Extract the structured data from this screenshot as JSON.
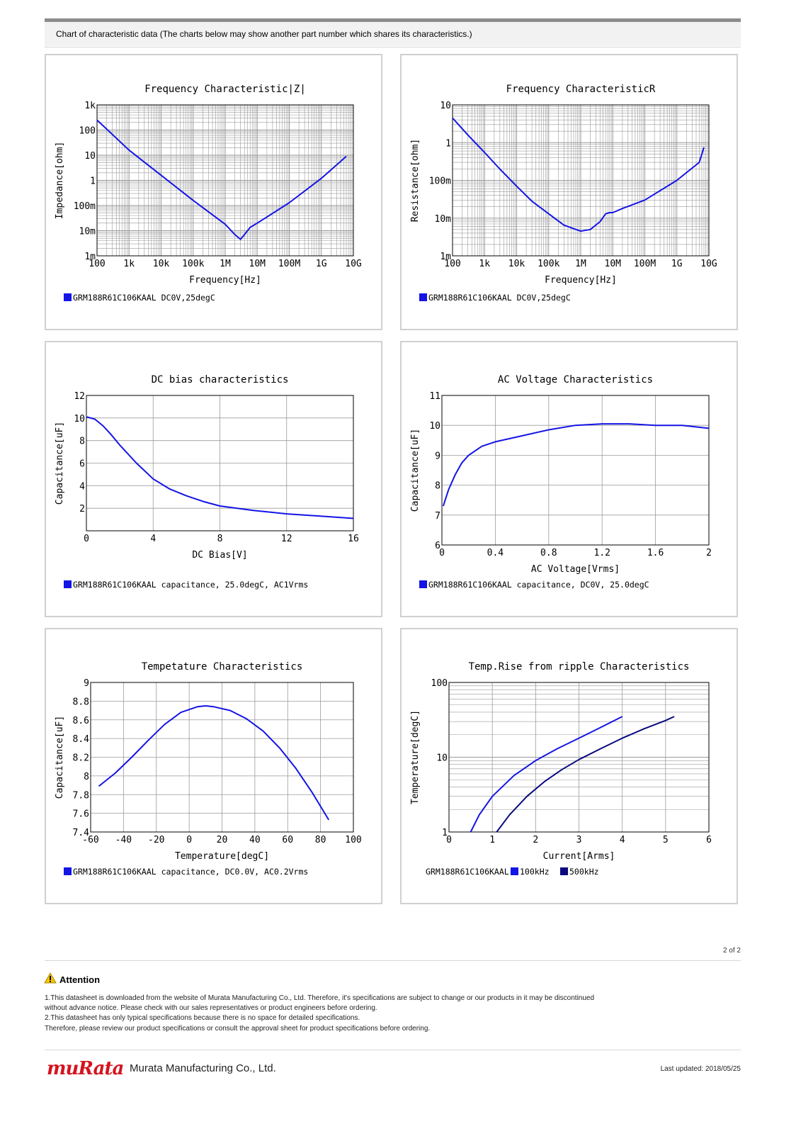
{
  "header": {
    "title": "Chart of characteristic data (The charts below may show another part number which shares its characteristics.)"
  },
  "chart_data": [
    {
      "type": "line",
      "title": "Frequency  Characteristic|Z|",
      "xlabel": "Frequency[Hz]",
      "ylabel": "Impedance[ohm]",
      "xscale": "log",
      "yscale": "log",
      "xlim": [
        100,
        10000000000
      ],
      "ylim": [
        0.001,
        1000
      ],
      "xticks": [
        "100",
        "1k",
        "10k",
        "100k",
        "1M",
        "10M",
        "100M",
        "1G",
        "10G"
      ],
      "yticks": [
        "1k",
        "100",
        "10",
        "1",
        "100m",
        "10m",
        "1m"
      ],
      "grid": true,
      "legend": "bottom-left",
      "legend_label": "GRM188R61C106KAAL DC0V,25degC",
      "series": [
        {
          "color": "#1414e6",
          "x": [
            100,
            1000,
            10000,
            100000,
            1000000,
            2000000,
            3000000,
            4000000,
            6000000,
            10000000,
            100000000,
            1000000000,
            6000000000
          ],
          "y": [
            250,
            16,
            1.6,
            0.16,
            0.018,
            0.007,
            0.0045,
            0.007,
            0.0135,
            0.02,
            0.13,
            1.2,
            9
          ]
        }
      ]
    },
    {
      "type": "line",
      "title": "Frequency  CharacteristicR",
      "xlabel": "Frequency[Hz]",
      "ylabel": "Resistance[ohm]",
      "xscale": "log",
      "yscale": "log",
      "xlim": [
        100,
        10000000000
      ],
      "ylim": [
        0.001,
        10
      ],
      "xticks": [
        "100",
        "1k",
        "10k",
        "100k",
        "1M",
        "10M",
        "100M",
        "1G",
        "10G"
      ],
      "yticks": [
        "10",
        "1",
        "100m",
        "10m",
        "1m"
      ],
      "grid": true,
      "legend": "bottom-left",
      "legend_label": "GRM188R61C106KAAL DC0V,25degC",
      "series": [
        {
          "color": "#1414e6",
          "x": [
            100,
            300,
            1000,
            3000,
            10000,
            30000,
            100000,
            300000,
            1000000,
            2000000,
            4000000,
            6000000,
            8000000,
            10000000,
            20000000,
            100000000,
            1000000000,
            5000000000,
            7000000000
          ],
          "y": [
            4.5,
            1.6,
            0.55,
            0.2,
            0.07,
            0.028,
            0.013,
            0.0065,
            0.0045,
            0.005,
            0.008,
            0.013,
            0.014,
            0.014,
            0.018,
            0.03,
            0.1,
            0.3,
            0.75
          ]
        }
      ]
    },
    {
      "type": "line",
      "title": "DC bias characteristics",
      "xlabel": "DC Bias[V]",
      "ylabel": "Capacitance[uF]",
      "xlim": [
        0,
        16
      ],
      "ylim": [
        0,
        12
      ],
      "xticks": [
        "0",
        "4",
        "8",
        "12",
        "16"
      ],
      "yticks": [
        "12",
        "10",
        "8",
        "6",
        "4",
        "2"
      ],
      "grid": true,
      "legend": "bottom-left",
      "legend_label": "GRM188R61C106KAAL capacitance, 25.0degC, AC1Vrms",
      "series": [
        {
          "color": "#1414e6",
          "x": [
            0,
            0.5,
            1,
            1.5,
            2,
            3,
            4,
            5,
            6,
            7,
            8,
            10,
            12,
            14,
            16
          ],
          "y": [
            10.1,
            9.9,
            9.3,
            8.5,
            7.6,
            6,
            4.6,
            3.7,
            3.1,
            2.6,
            2.2,
            1.8,
            1.5,
            1.3,
            1.1
          ]
        }
      ]
    },
    {
      "type": "line",
      "title": "AC Voltage Characteristics",
      "xlabel": "AC Voltage[Vrms]",
      "ylabel": "Capacitance[uF]",
      "xlim": [
        0,
        2
      ],
      "ylim": [
        6,
        11
      ],
      "xticks": [
        "0",
        "0.4",
        "0.8",
        "1.2",
        "1.6",
        "2"
      ],
      "yticks": [
        "11",
        "10",
        "9",
        "8",
        "7",
        "6"
      ],
      "grid": true,
      "legend": "bottom-left",
      "legend_label": "GRM188R61C106KAAL capacitance, DC0V, 25.0degC",
      "series": [
        {
          "color": "#1414e6",
          "x": [
            0.01,
            0.05,
            0.1,
            0.15,
            0.2,
            0.3,
            0.4,
            0.6,
            0.8,
            1.0,
            1.2,
            1.4,
            1.6,
            1.8,
            2.0
          ],
          "y": [
            7.3,
            7.85,
            8.35,
            8.75,
            9.0,
            9.3,
            9.45,
            9.65,
            9.85,
            10.0,
            10.05,
            10.05,
            10.0,
            10.0,
            9.9
          ]
        }
      ]
    },
    {
      "type": "line",
      "title": "Tempetature  Characteristics",
      "xlabel": "Temperature[degC]",
      "ylabel": "Capacitance[uF]",
      "xlim": [
        -60,
        100
      ],
      "ylim": [
        7.4,
        9
      ],
      "xticks": [
        "-60",
        "-40",
        "-20",
        "0",
        "20",
        "40",
        "60",
        "80",
        "100"
      ],
      "yticks": [
        "9",
        "8.8",
        "8.6",
        "8.4",
        "8.2",
        "8",
        "7.8",
        "7.6",
        "7.4"
      ],
      "grid": true,
      "legend": "bottom-left",
      "legend_label": "GRM188R61C106KAAL capacitance, DC0.0V, AC0.2Vrms",
      "series": [
        {
          "color": "#1414e6",
          "x": [
            -55,
            -45,
            -35,
            -25,
            -15,
            -5,
            5,
            10,
            15,
            25,
            35,
            45,
            55,
            65,
            75,
            85
          ],
          "y": [
            7.89,
            8.03,
            8.2,
            8.38,
            8.55,
            8.68,
            8.74,
            8.75,
            8.74,
            8.7,
            8.61,
            8.48,
            8.3,
            8.08,
            7.82,
            7.53
          ]
        }
      ]
    },
    {
      "type": "line",
      "title": "Temp.Rise from ripple Characteristics",
      "xlabel": "Current[Arms]",
      "ylabel": "Temperature[degC]",
      "yscale": "log",
      "xlim": [
        0,
        6
      ],
      "ylim": [
        1,
        100
      ],
      "xticks": [
        "0",
        "1",
        "2",
        "3",
        "4",
        "5",
        "6"
      ],
      "yticks": [
        "100",
        "10",
        "1"
      ],
      "grid": true,
      "legend": "bottom-left",
      "legend_prefix": "GRM188R61C106KAAL",
      "series": [
        {
          "name": "100kHz",
          "color": "#1414e6",
          "x": [
            0.5,
            0.7,
            1.0,
            1.5,
            2.0,
            2.5,
            3.0,
            3.5,
            4.0
          ],
          "y": [
            1.0,
            1.7,
            3.0,
            5.7,
            9.0,
            13,
            18,
            25,
            35
          ]
        },
        {
          "name": "500kHz",
          "color": "#0a0a80",
          "x": [
            1.1,
            1.4,
            1.8,
            2.2,
            2.6,
            3.0,
            3.5,
            4.0,
            4.5,
            5.0,
            5.2
          ],
          "y": [
            1.0,
            1.7,
            3.0,
            4.7,
            6.8,
            9.3,
            13,
            18,
            24,
            31,
            35
          ]
        }
      ]
    }
  ],
  "footer": {
    "page_number": "2 of 2",
    "attention_title": "Attention",
    "attention_lines": [
      "1.This datasheet is downloaded from the website of Murata Manufacturing Co., Ltd. Therefore, it's specifications are subject to change or our products in it may be discontinued",
      "without advance notice. Please check with our sales representatives or product engineers before ordering.",
      "2.This datasheet has only typical specifications because there is no space for detailed specifications.",
      "Therefore, please review our product specifications or consult the approval sheet for product specifications before ordering."
    ],
    "logo_text": "muRata",
    "company": "Murata Manufacturing Co., Ltd.",
    "last_updated": "Last updated: 2018/05/25"
  }
}
